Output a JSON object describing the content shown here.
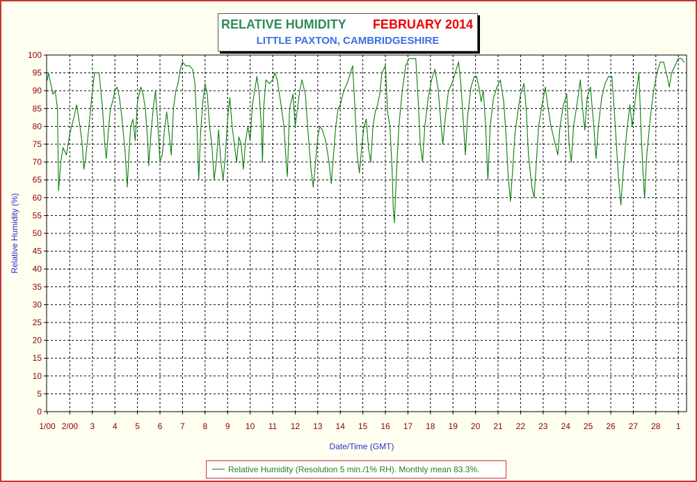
{
  "chart_data": {
    "type": "line",
    "title": "RELATIVE HUMIDITY",
    "title_period": "FEBRUARY 2014",
    "subtitle": "LITTLE PAXTON, CAMBRIDGESHIRE",
    "xlabel": "Date/Time (GMT)",
    "ylabel": "Relative Humidity (%)",
    "ylim": [
      0,
      100
    ],
    "y_ticks": [
      0,
      5,
      10,
      15,
      20,
      25,
      30,
      35,
      40,
      45,
      50,
      55,
      60,
      65,
      70,
      75,
      80,
      85,
      90,
      95,
      100
    ],
    "xlim": [
      1,
      29.4
    ],
    "x_ticks": [
      {
        "x": 1,
        "label": "1/00"
      },
      {
        "x": 2,
        "label": "2/00"
      },
      {
        "x": 3,
        "label": "3"
      },
      {
        "x": 4,
        "label": "4"
      },
      {
        "x": 5,
        "label": "5"
      },
      {
        "x": 6,
        "label": "6"
      },
      {
        "x": 7,
        "label": "7"
      },
      {
        "x": 8,
        "label": "8"
      },
      {
        "x": 9,
        "label": "9"
      },
      {
        "x": 10,
        "label": "10"
      },
      {
        "x": 11,
        "label": "11"
      },
      {
        "x": 12,
        "label": "12"
      },
      {
        "x": 13,
        "label": "13"
      },
      {
        "x": 14,
        "label": "14"
      },
      {
        "x": 15,
        "label": "15"
      },
      {
        "x": 16,
        "label": "16"
      },
      {
        "x": 17,
        "label": "17"
      },
      {
        "x": 18,
        "label": "18"
      },
      {
        "x": 19,
        "label": "19"
      },
      {
        "x": 20,
        "label": "20"
      },
      {
        "x": 21,
        "label": "21"
      },
      {
        "x": 22,
        "label": "22"
      },
      {
        "x": 23,
        "label": "23"
      },
      {
        "x": 24,
        "label": "24"
      },
      {
        "x": 25,
        "label": "25"
      },
      {
        "x": 26,
        "label": "26"
      },
      {
        "x": 27,
        "label": "27"
      },
      {
        "x": 28,
        "label": "28"
      },
      {
        "x": 29,
        "label": "1"
      }
    ],
    "grid": true,
    "legend_position": "bottom-center",
    "series": [
      {
        "name": "Relative Humidity (Resolution 5 min./1% RH). Monthly mean 83.3%.",
        "color": "#0a7a0a",
        "points": [
          [
            1.0,
            93
          ],
          [
            1.05,
            95
          ],
          [
            1.15,
            92
          ],
          [
            1.25,
            89
          ],
          [
            1.35,
            90
          ],
          [
            1.45,
            85
          ],
          [
            1.5,
            62
          ],
          [
            1.6,
            70
          ],
          [
            1.7,
            74
          ],
          [
            1.85,
            72
          ],
          [
            2.0,
            78
          ],
          [
            2.2,
            83
          ],
          [
            2.3,
            86
          ],
          [
            2.45,
            80
          ],
          [
            2.55,
            75
          ],
          [
            2.62,
            68
          ],
          [
            2.7,
            71
          ],
          [
            2.85,
            80
          ],
          [
            3.0,
            90
          ],
          [
            3.1,
            95
          ],
          [
            3.3,
            95
          ],
          [
            3.45,
            85
          ],
          [
            3.55,
            75
          ],
          [
            3.62,
            71
          ],
          [
            3.7,
            78
          ],
          [
            3.8,
            85
          ],
          [
            3.9,
            87
          ],
          [
            4.0,
            90
          ],
          [
            4.1,
            91
          ],
          [
            4.2,
            88
          ],
          [
            4.3,
            83
          ],
          [
            4.45,
            73
          ],
          [
            4.55,
            63
          ],
          [
            4.62,
            72
          ],
          [
            4.7,
            80
          ],
          [
            4.8,
            82
          ],
          [
            4.9,
            76
          ],
          [
            5.0,
            87
          ],
          [
            5.15,
            91
          ],
          [
            5.25,
            89
          ],
          [
            5.35,
            85
          ],
          [
            5.45,
            76
          ],
          [
            5.5,
            69
          ],
          [
            5.6,
            78
          ],
          [
            5.7,
            85
          ],
          [
            5.8,
            90
          ],
          [
            5.9,
            81
          ],
          [
            6.0,
            70
          ],
          [
            6.1,
            72
          ],
          [
            6.2,
            79
          ],
          [
            6.3,
            84
          ],
          [
            6.4,
            78
          ],
          [
            6.5,
            72
          ],
          [
            6.6,
            85
          ],
          [
            6.7,
            90
          ],
          [
            6.8,
            92
          ],
          [
            6.9,
            96
          ],
          [
            7.0,
            98
          ],
          [
            7.15,
            97
          ],
          [
            7.3,
            97
          ],
          [
            7.45,
            96
          ],
          [
            7.55,
            92
          ],
          [
            7.65,
            78
          ],
          [
            7.72,
            65
          ],
          [
            7.8,
            78
          ],
          [
            7.9,
            87
          ],
          [
            8.0,
            92
          ],
          [
            8.1,
            89
          ],
          [
            8.2,
            80
          ],
          [
            8.3,
            75
          ],
          [
            8.4,
            65
          ],
          [
            8.5,
            70
          ],
          [
            8.6,
            79
          ],
          [
            8.7,
            70
          ],
          [
            8.8,
            65
          ],
          [
            8.9,
            72
          ],
          [
            9.0,
            82
          ],
          [
            9.1,
            88
          ],
          [
            9.2,
            80
          ],
          [
            9.3,
            75
          ],
          [
            9.4,
            70
          ],
          [
            9.5,
            77
          ],
          [
            9.6,
            75
          ],
          [
            9.7,
            68
          ],
          [
            9.8,
            76
          ],
          [
            9.9,
            80
          ],
          [
            10.0,
            76
          ],
          [
            10.1,
            86
          ],
          [
            10.2,
            90
          ],
          [
            10.3,
            94
          ],
          [
            10.4,
            89
          ],
          [
            10.5,
            80
          ],
          [
            10.55,
            70
          ],
          [
            10.6,
            85
          ],
          [
            10.7,
            93
          ],
          [
            10.85,
            92
          ],
          [
            11.0,
            93
          ],
          [
            11.1,
            95
          ],
          [
            11.2,
            93
          ],
          [
            11.35,
            87
          ],
          [
            11.5,
            80
          ],
          [
            11.6,
            70
          ],
          [
            11.65,
            66
          ],
          [
            11.75,
            85
          ],
          [
            11.9,
            89
          ],
          [
            12.0,
            80
          ],
          [
            12.1,
            85
          ],
          [
            12.2,
            90
          ],
          [
            12.3,
            93
          ],
          [
            12.45,
            89
          ],
          [
            12.55,
            80
          ],
          [
            12.7,
            68
          ],
          [
            12.8,
            63
          ],
          [
            12.9,
            70
          ],
          [
            13.0,
            77
          ],
          [
            13.1,
            80
          ],
          [
            13.2,
            79
          ],
          [
            13.35,
            76
          ],
          [
            13.5,
            70
          ],
          [
            13.6,
            64
          ],
          [
            13.7,
            72
          ],
          [
            13.8,
            80
          ],
          [
            13.9,
            85
          ],
          [
            14.0,
            86
          ],
          [
            14.15,
            90
          ],
          [
            14.3,
            92
          ],
          [
            14.45,
            95
          ],
          [
            14.55,
            97
          ],
          [
            14.65,
            85
          ],
          [
            14.75,
            72
          ],
          [
            14.85,
            67
          ],
          [
            14.95,
            74
          ],
          [
            15.05,
            80
          ],
          [
            15.15,
            82
          ],
          [
            15.25,
            74
          ],
          [
            15.35,
            70
          ],
          [
            15.45,
            80
          ],
          [
            15.55,
            84
          ],
          [
            15.65,
            86
          ],
          [
            15.75,
            89
          ],
          [
            15.85,
            95
          ],
          [
            16.0,
            97
          ],
          [
            16.1,
            84
          ],
          [
            16.2,
            80
          ],
          [
            16.3,
            68
          ],
          [
            16.35,
            57
          ],
          [
            16.4,
            53
          ],
          [
            16.5,
            68
          ],
          [
            16.6,
            80
          ],
          [
            16.75,
            90
          ],
          [
            16.9,
            97
          ],
          [
            17.05,
            99
          ],
          [
            17.2,
            99
          ],
          [
            17.35,
            99
          ],
          [
            17.45,
            88
          ],
          [
            17.55,
            75
          ],
          [
            17.65,
            70
          ],
          [
            17.75,
            80
          ],
          [
            17.9,
            88
          ],
          [
            18.05,
            93
          ],
          [
            18.2,
            96
          ],
          [
            18.35,
            90
          ],
          [
            18.45,
            82
          ],
          [
            18.55,
            75
          ],
          [
            18.65,
            82
          ],
          [
            18.8,
            90
          ],
          [
            18.95,
            92
          ],
          [
            19.1,
            95
          ],
          [
            19.25,
            98
          ],
          [
            19.35,
            92
          ],
          [
            19.45,
            82
          ],
          [
            19.55,
            72
          ],
          [
            19.65,
            83
          ],
          [
            19.8,
            91
          ],
          [
            19.95,
            94
          ],
          [
            20.05,
            94
          ],
          [
            20.15,
            91
          ],
          [
            20.25,
            87
          ],
          [
            20.35,
            90
          ],
          [
            20.45,
            80
          ],
          [
            20.55,
            65
          ],
          [
            20.65,
            80
          ],
          [
            20.8,
            88
          ],
          [
            20.95,
            91
          ],
          [
            21.1,
            93
          ],
          [
            21.25,
            87
          ],
          [
            21.35,
            78
          ],
          [
            21.45,
            66
          ],
          [
            21.55,
            59
          ],
          [
            21.65,
            68
          ],
          [
            21.75,
            78
          ],
          [
            21.9,
            85
          ],
          [
            22.0,
            89
          ],
          [
            22.15,
            92
          ],
          [
            22.25,
            85
          ],
          [
            22.35,
            72
          ],
          [
            22.5,
            63
          ],
          [
            22.6,
            60
          ],
          [
            22.7,
            70
          ],
          [
            22.8,
            80
          ],
          [
            22.95,
            86
          ],
          [
            23.1,
            91
          ],
          [
            23.2,
            86
          ],
          [
            23.35,
            80
          ],
          [
            23.5,
            76
          ],
          [
            23.65,
            72
          ],
          [
            23.75,
            80
          ],
          [
            23.9,
            86
          ],
          [
            24.05,
            89
          ],
          [
            24.15,
            75
          ],
          [
            24.25,
            70
          ],
          [
            24.35,
            80
          ],
          [
            24.5,
            86
          ],
          [
            24.65,
            93
          ],
          [
            24.75,
            85
          ],
          [
            24.85,
            79
          ],
          [
            24.95,
            88
          ],
          [
            25.1,
            91
          ],
          [
            25.25,
            80
          ],
          [
            25.35,
            71
          ],
          [
            25.45,
            80
          ],
          [
            25.6,
            88
          ],
          [
            25.75,
            92
          ],
          [
            25.9,
            94
          ],
          [
            26.05,
            94
          ],
          [
            26.15,
            85
          ],
          [
            26.25,
            75
          ],
          [
            26.35,
            65
          ],
          [
            26.45,
            58
          ],
          [
            26.55,
            67
          ],
          [
            26.7,
            78
          ],
          [
            26.85,
            86
          ],
          [
            26.95,
            80
          ],
          [
            27.1,
            88
          ],
          [
            27.25,
            95
          ],
          [
            27.35,
            78
          ],
          [
            27.45,
            65
          ],
          [
            27.5,
            60
          ],
          [
            27.6,
            72
          ],
          [
            27.75,
            82
          ],
          [
            27.9,
            90
          ],
          [
            28.05,
            95
          ],
          [
            28.2,
            98
          ],
          [
            28.35,
            98
          ],
          [
            28.5,
            94
          ],
          [
            28.6,
            91
          ],
          [
            28.7,
            95
          ],
          [
            28.85,
            97
          ],
          [
            29.0,
            99
          ],
          [
            29.15,
            99
          ],
          [
            29.25,
            98
          ]
        ]
      }
    ]
  }
}
